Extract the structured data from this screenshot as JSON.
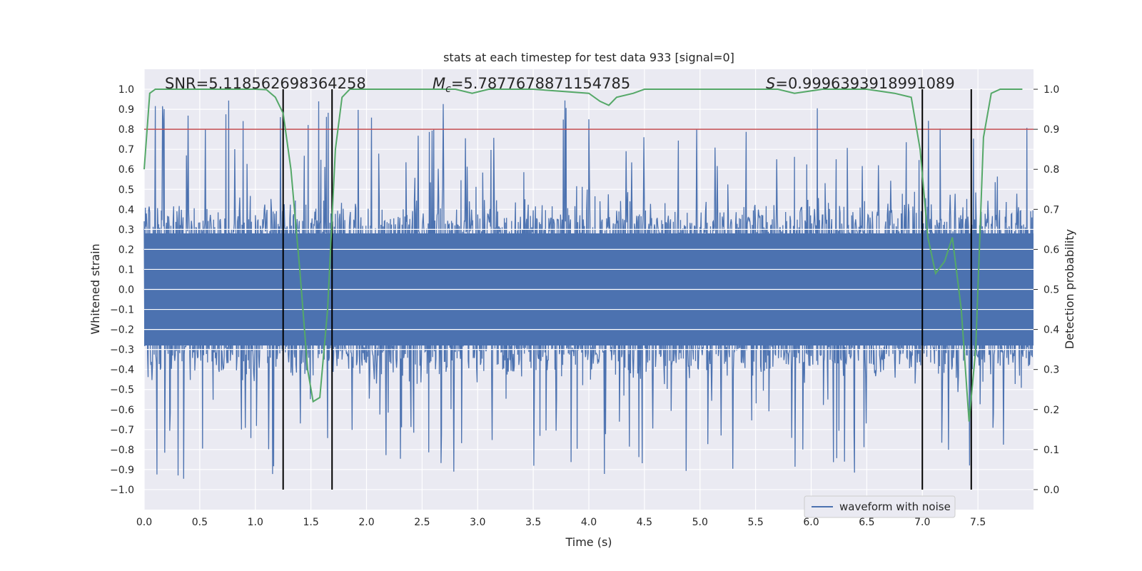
{
  "chart_data": {
    "type": "line",
    "title": "stats at each timestep for test data 933 [signal=0]",
    "xlabel": "Time (s)",
    "ylabel": "Whitened strain",
    "y2label": "Detection probability",
    "xlim": [
      0,
      8
    ],
    "ylim": [
      -1.1,
      1.1
    ],
    "y2lim": [
      -0.05,
      1.05
    ],
    "grid": true,
    "legend_position": "bottom-right",
    "xticks": [
      "0.0",
      "0.5",
      "1.0",
      "1.5",
      "2.0",
      "2.5",
      "3.0",
      "3.5",
      "4.0",
      "4.5",
      "5.0",
      "5.5",
      "6.0",
      "6.5",
      "7.0",
      "7.5"
    ],
    "yticks": [
      "−1.0",
      "−0.9",
      "−0.8",
      "−0.7",
      "−0.6",
      "−0.5",
      "−0.4",
      "−0.3",
      "−0.2",
      "−0.1",
      "0.0",
      "0.1",
      "0.2",
      "0.3",
      "0.4",
      "0.5",
      "0.6",
      "0.7",
      "0.8",
      "0.9",
      "1.0"
    ],
    "y2ticks": [
      "0.0",
      "0.1",
      "0.2",
      "0.3",
      "0.4",
      "0.5",
      "0.6",
      "0.7",
      "0.8",
      "0.9",
      "1.0"
    ],
    "annotations": {
      "snr": "SNR=5.118562698364258",
      "mc_symbol": "M",
      "mc_sub": "c",
      "mc_value": "=5.7877678871154785",
      "s_symbol": "S",
      "s_value": "=0.9996393918991089"
    },
    "series": [
      {
        "name": "waveform with noise",
        "axis": "left",
        "color": "#4c72b0",
        "kind": "noise",
        "amplitude_core": 0.28,
        "typical_peak": 0.95,
        "samples_per_second": 200
      },
      {
        "name": "detection probability",
        "axis": "right",
        "color": "#55a868",
        "x": [
          0.0,
          0.05,
          0.1,
          0.2,
          0.4,
          0.6,
          0.8,
          1.0,
          1.1,
          1.18,
          1.25,
          1.32,
          1.4,
          1.47,
          1.52,
          1.58,
          1.65,
          1.72,
          1.78,
          1.85,
          2.0,
          2.5,
          2.8,
          2.95,
          3.1,
          3.5,
          4.0,
          4.1,
          4.18,
          4.25,
          4.4,
          4.5,
          4.8,
          5.2,
          5.5,
          5.7,
          5.85,
          6.1,
          6.5,
          6.75,
          6.9,
          6.98,
          7.05,
          7.12,
          7.2,
          7.27,
          7.35,
          7.42,
          7.48,
          7.55,
          7.62,
          7.7,
          7.9
        ],
        "values": [
          0.8,
          0.99,
          1.0,
          1.0,
          1.0,
          1.0,
          1.0,
          1.0,
          0.999,
          0.98,
          0.94,
          0.8,
          0.55,
          0.3,
          0.22,
          0.23,
          0.45,
          0.85,
          0.98,
          1.0,
          1.0,
          1.0,
          1.0,
          0.99,
          1.0,
          1.0,
          0.99,
          0.97,
          0.96,
          0.98,
          0.99,
          1.0,
          1.0,
          1.0,
          1.0,
          1.0,
          0.99,
          1.0,
          1.0,
          0.99,
          0.98,
          0.85,
          0.63,
          0.54,
          0.57,
          0.63,
          0.45,
          0.17,
          0.35,
          0.88,
          0.99,
          1.0,
          1.0
        ]
      }
    ],
    "threshold": {
      "axis": "right",
      "value": 0.9,
      "color": "#c44e52"
    },
    "vlines": {
      "color": "#000000",
      "x": [
        1.25,
        1.69,
        7.0,
        7.44
      ],
      "y_top": 1.0,
      "y_bottom": -1.0
    }
  }
}
